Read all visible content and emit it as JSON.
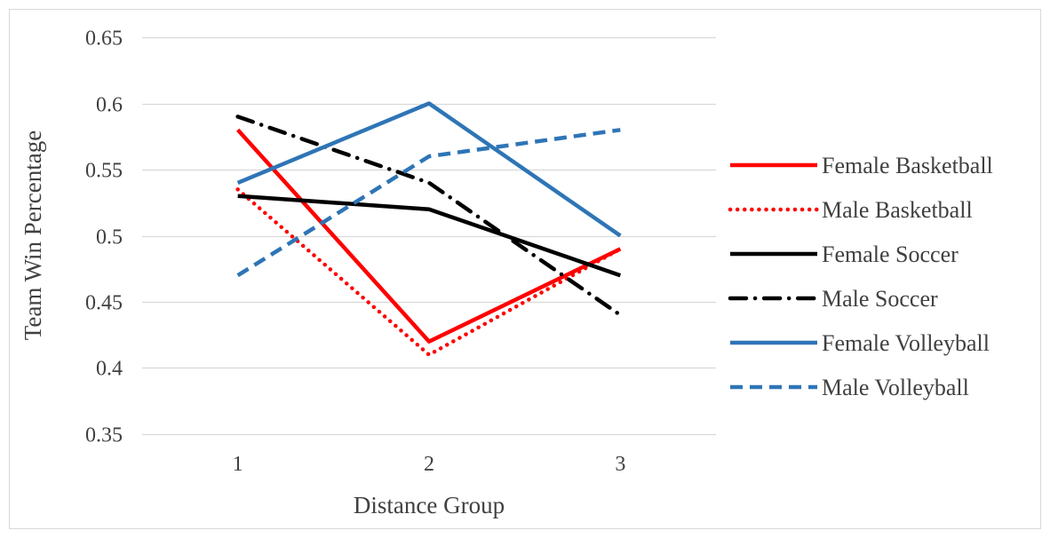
{
  "chart_data": {
    "type": "line",
    "xlabel": "Distance Group",
    "ylabel": "Team Win Percentage",
    "categories": [
      "1",
      "2",
      "3"
    ],
    "ylim": [
      0.35,
      0.65
    ],
    "yticks": [
      0.35,
      0.4,
      0.45,
      0.5,
      0.55,
      0.6,
      0.65
    ],
    "ytick_labels": [
      "0.35",
      "0.4",
      "0.45",
      "0.5",
      "0.55",
      "0.6",
      "0.65"
    ],
    "grid": true,
    "legend_position": "right",
    "series": [
      {
        "name": "Female Basketball",
        "values": [
          0.58,
          0.42,
          0.49
        ],
        "color": "#FF0000",
        "style": "solid"
      },
      {
        "name": "Male Basketball",
        "values": [
          0.535,
          0.41,
          0.49
        ],
        "color": "#FF0000",
        "style": "dotted"
      },
      {
        "name": "Female Soccer",
        "values": [
          0.53,
          0.52,
          0.47
        ],
        "color": "#000000",
        "style": "solid"
      },
      {
        "name": "Male Soccer",
        "values": [
          0.59,
          0.54,
          0.44
        ],
        "color": "#000000",
        "style": "dash-dot"
      },
      {
        "name": "Female Volleyball",
        "values": [
          0.54,
          0.6,
          0.5
        ],
        "color": "#2E75B6",
        "style": "solid"
      },
      {
        "name": "Male Volleyball",
        "values": [
          0.47,
          0.56,
          0.58
        ],
        "color": "#2E75B6",
        "style": "dashed"
      }
    ]
  }
}
